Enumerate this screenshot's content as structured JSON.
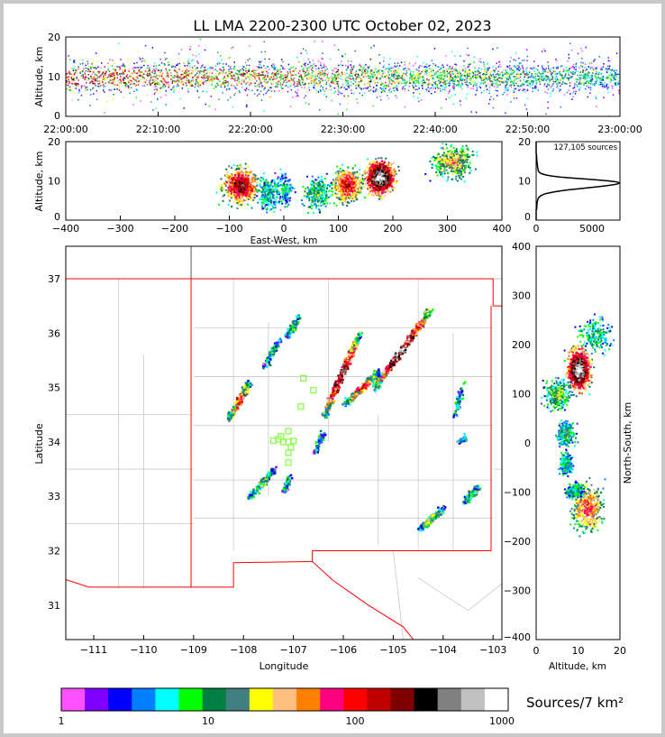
{
  "chart_data": [
    {
      "type": "heatmap",
      "name": "time-altitude",
      "title": "LL LMA 2200-2300 UTC October 02, 2023",
      "xlabel": "",
      "ylabel": "Altitude, km",
      "xticks": [
        "22:00:00",
        "22:10:00",
        "22:20:00",
        "22:30:00",
        "22:40:00",
        "22:50:00",
        "23:00:00"
      ],
      "ylim": [
        0,
        20
      ],
      "yticks": [
        "0",
        "10",
        "20"
      ]
    },
    {
      "type": "heatmap",
      "name": "eastwest-altitude",
      "xlabel": "East-West, km",
      "ylabel": "Altitude, km",
      "xlim": [
        -400,
        400
      ],
      "xticks": [
        "−400",
        "−300",
        "−200",
        "−100",
        "0",
        "100",
        "200",
        "300",
        "400"
      ],
      "yticks": [
        "0",
        "10",
        "20"
      ],
      "clusters": [
        {
          "x": -80,
          "alt": 9,
          "w": 30,
          "n": 700
        },
        {
          "x": 175,
          "alt": 11,
          "w": 25,
          "n": 900
        },
        {
          "x": 115,
          "alt": 9,
          "w": 25,
          "n": 600
        },
        {
          "x": 310,
          "alt": 15,
          "w": 35,
          "n": 400
        },
        {
          "x": 0,
          "alt": 8,
          "w": 15,
          "n": 150
        },
        {
          "x": 60,
          "alt": 7,
          "w": 25,
          "n": 250
        },
        {
          "x": -30,
          "alt": 7,
          "w": 20,
          "n": 200
        }
      ]
    },
    {
      "type": "line",
      "name": "altitude-histogram",
      "annotation": "127,105 sources",
      "xticks": [
        "0",
        "5000"
      ],
      "yticks": [
        "0",
        "10",
        "20"
      ],
      "xlim": [
        0,
        7500
      ],
      "ylim": [
        0,
        20
      ],
      "peak": {
        "alt": 9.5,
        "count": 7200
      }
    },
    {
      "type": "scatter",
      "name": "plan-view",
      "xlabel": "Longitude",
      "ylabel": "Latitude",
      "xlim": [
        -111.56,
        -102.82
      ],
      "ylim": [
        30.37,
        37.6
      ],
      "xticks": [
        "−111",
        "−110",
        "−109",
        "−108",
        "−107",
        "−106",
        "−105",
        "−104",
        "−103"
      ],
      "yticks": [
        "31",
        "32",
        "33",
        "34",
        "35",
        "36",
        "37"
      ],
      "storm_lines": [
        {
          "from": [
            -108.3,
            34.45
          ],
          "to": [
            -107.9,
            35.1
          ],
          "n": 260
        },
        {
          "from": [
            -107.9,
            33.0
          ],
          "to": [
            -107.4,
            33.5
          ],
          "n": 150
        },
        {
          "from": [
            -107.6,
            35.4
          ],
          "to": [
            -107.3,
            35.9
          ],
          "n": 80
        },
        {
          "from": [
            -107.15,
            35.95
          ],
          "to": [
            -106.9,
            36.3
          ],
          "n": 80
        },
        {
          "from": [
            -106.4,
            34.5
          ],
          "to": [
            -105.7,
            36.0
          ],
          "n": 380
        },
        {
          "from": [
            -105.4,
            35.0
          ],
          "to": [
            -104.3,
            36.4
          ],
          "n": 450
        },
        {
          "from": [
            -106.0,
            34.7
          ],
          "to": [
            -105.3,
            35.3
          ],
          "n": 250
        },
        {
          "from": [
            -104.5,
            32.4
          ],
          "to": [
            -104.0,
            32.8
          ],
          "n": 150
        },
        {
          "from": [
            -103.6,
            32.9
          ],
          "to": [
            -103.3,
            33.2
          ],
          "n": 120
        },
        {
          "from": [
            -103.7,
            34.0
          ],
          "to": [
            -103.6,
            34.1
          ],
          "n": 30
        },
        {
          "from": [
            -103.8,
            34.5
          ],
          "to": [
            -103.6,
            35.1
          ],
          "n": 50
        },
        {
          "from": [
            -107.2,
            33.1
          ],
          "to": [
            -107.1,
            33.4
          ],
          "n": 40
        },
        {
          "from": [
            -106.6,
            33.8
          ],
          "to": [
            -106.4,
            34.2
          ],
          "n": 60
        }
      ],
      "stations": [
        [
          -107.3,
          34.05
        ],
        [
          -107.2,
          34.0
        ],
        [
          -107.1,
          34.0
        ],
        [
          -107.0,
          34.02
        ],
        [
          -107.1,
          34.2
        ],
        [
          -107.1,
          33.8
        ],
        [
          -107.1,
          33.62
        ],
        [
          -106.85,
          34.65
        ],
        [
          -106.8,
          35.17
        ],
        [
          -106.6,
          34.95
        ],
        [
          -107.4,
          34.02
        ],
        [
          -107.25,
          34.1
        ],
        [
          -107.05,
          33.9
        ]
      ],
      "station_color": "#80ff40"
    },
    {
      "type": "heatmap",
      "name": "altitude-northsouth",
      "xlabel": "Altitude, km",
      "ylabel": "North-South, km",
      "xlim": [
        0,
        20
      ],
      "ylim": [
        -400,
        400
      ],
      "xticks": [
        "0",
        "10",
        "20"
      ],
      "yticks": [
        "400",
        "300",
        "200",
        "100",
        "0",
        "−100",
        "−200",
        "−300",
        "−400"
      ]
    },
    {
      "type": "colorbar",
      "label": "Sources/7 km²",
      "ticks": [
        "1",
        "10",
        "100",
        "1000"
      ],
      "colors": [
        "#ff50ff",
        "#8000ff",
        "#0000ff",
        "#0080ff",
        "#00ffff",
        "#00ff00",
        "#008040",
        "#408080",
        "#ffff00",
        "#ffc080",
        "#ff8000",
        "#ff0080",
        "#ff0000",
        "#c00000",
        "#800000",
        "#000000",
        "#808080",
        "#c0c0c0",
        "#ffffff"
      ]
    }
  ]
}
